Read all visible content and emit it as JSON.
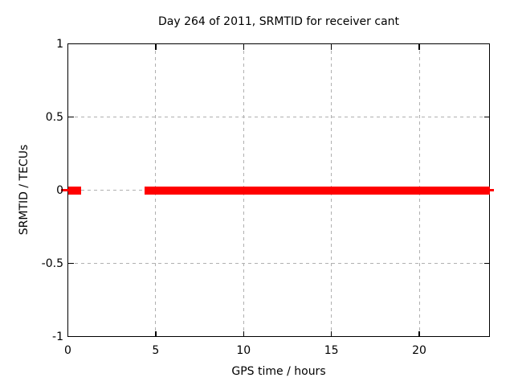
{
  "colors": {
    "background": "#ffffff",
    "border": "#000000",
    "text": "#000000",
    "grid": "#b0b0b0",
    "series_red": "#ff0000"
  },
  "chart_data": {
    "type": "line",
    "title": "Day 264 of 2011, SRMTID for receiver cant",
    "xlabel": "GPS time / hours",
    "ylabel": "SRMTID / TECUs",
    "xlim": [
      0,
      24
    ],
    "ylim": [
      -1,
      1
    ],
    "xtick_values": [
      0,
      5,
      10,
      15,
      20
    ],
    "xtick_labels": [
      "0",
      "5",
      "10",
      "15",
      "20"
    ],
    "ytick_values": [
      1,
      0.5,
      0,
      -0.5,
      -1
    ],
    "ytick_labels": [
      "1",
      "0.5",
      "0",
      "-0.5",
      "-1"
    ],
    "grid": true,
    "ticks_mirrored": true,
    "legend": null,
    "series": [
      {
        "name": "SRMTID",
        "color": "#ff0000",
        "style": "thick-horizontal-line",
        "y_value": 0,
        "segments_x": [
          [
            0,
            0.75
          ],
          [
            4.35,
            24
          ]
        ],
        "edge_overhang_marks_at_y0": true
      }
    ]
  }
}
